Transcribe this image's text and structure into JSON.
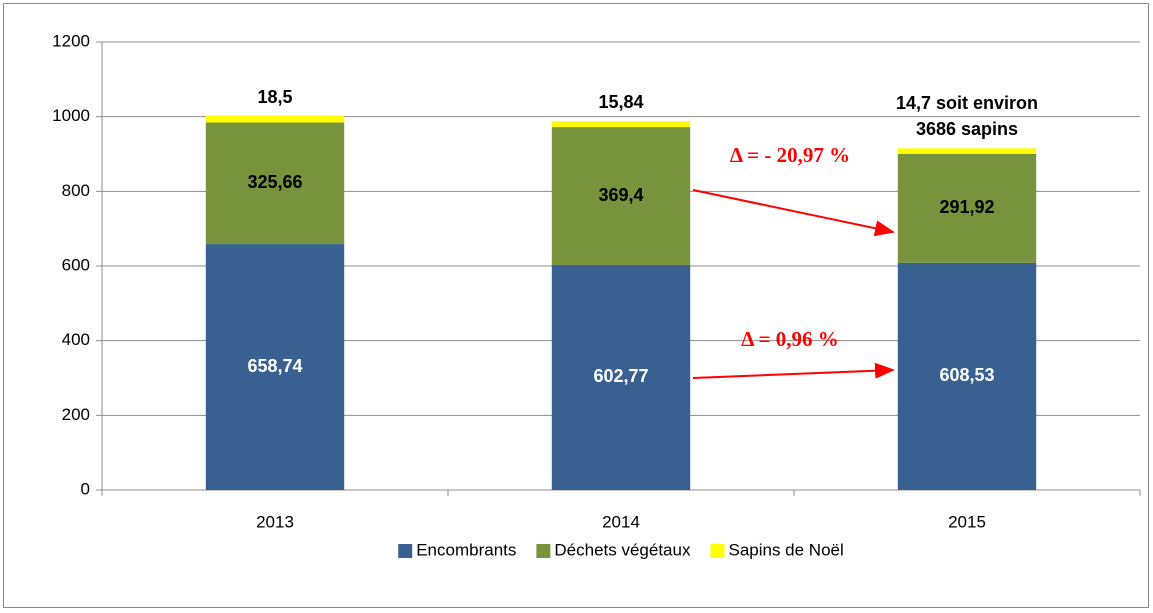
{
  "chart_data": {
    "type": "stacked_bar",
    "categories": [
      "2013",
      "2014",
      "2015"
    ],
    "series": [
      {
        "name": "Encombrants",
        "color": "#386192",
        "values": [
          658.74,
          602.77,
          608.53
        ],
        "value_labels": [
          "658,74",
          "602,77",
          "608,53"
        ]
      },
      {
        "name": "Déchets végétaux",
        "color": "#77933c",
        "values": [
          325.66,
          369.4,
          291.92
        ],
        "value_labels": [
          "325,66",
          "369,4",
          "291,92"
        ]
      },
      {
        "name": "Sapins de Noël",
        "color": "#ffff00",
        "values": [
          18.5,
          15.84,
          14.7
        ],
        "value_labels": [
          "18,5",
          "15,84",
          "14,7 soit environ 3686 sapins"
        ]
      }
    ],
    "ylim": [
      0,
      1200
    ],
    "yticks": [
      0,
      200,
      400,
      600,
      800,
      1000,
      1200
    ],
    "grid": true,
    "legend": "bottom",
    "annotations": [
      "Δ = - 20,97 %",
      "Δ = 0,96 %"
    ]
  }
}
